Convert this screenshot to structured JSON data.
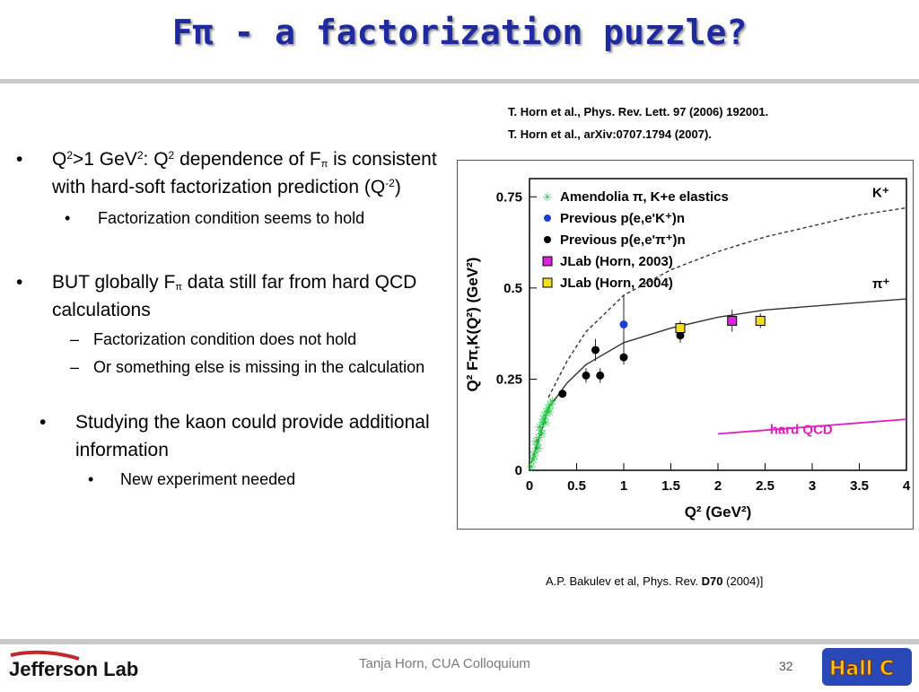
{
  "slide": {
    "title": "Fπ - a factorization puzzle?",
    "refs": [
      "T. Horn et al.,  Phys. Rev. Lett. 97 (2006) 192001.",
      "T. Horn et al.,  arXiv:0707.1794 (2007)."
    ],
    "bullet1": {
      "text_a": "Q",
      "text_b": "2",
      "text_c": ">1 GeV",
      "text_d": "2",
      "text_e": ": Q",
      "text_f": "2",
      "text_g": " dependence of F",
      "text_h": "π",
      "text_i": " is consistent with hard-soft factorization prediction (Q",
      "text_j": "-2",
      "text_k": ")",
      "sub": "Factorization condition seems to hold"
    },
    "bullet2": {
      "text_a": "BUT globally F",
      "text_b": "π",
      "text_c": " data still far from hard QCD calculations",
      "subs": [
        "Factorization condition does not hold",
        "Or something else is missing in the calculation"
      ]
    },
    "bullet3": {
      "text": "Studying the kaon could provide additional information",
      "sub": "New experiment needed"
    },
    "bakulev_a": "A.P. Bakulev et al, Phys. Rev. ",
    "bakulev_b": "D70",
    "bakulev_c": " (2004)]",
    "footer_center": "Tanja Horn, CUA Colloquium",
    "page_number": "32",
    "logo_left": "Jefferson Lab",
    "logo_right": "Hall C"
  },
  "chart_data": {
    "type": "scatter",
    "xlabel": "Q² (GeV²)",
    "ylabel": "Q² Fπ,K(Q²) (GeV²)",
    "xlim": [
      0,
      4
    ],
    "ylim": [
      0,
      0.8
    ],
    "xticks": [
      "0",
      "0.5",
      "1",
      "1.5",
      "2",
      "2.5",
      "3",
      "3.5",
      "4"
    ],
    "yticks": [
      "0",
      "0.25",
      "0.5",
      "0.75"
    ],
    "legend_position": "top-left",
    "series": [
      {
        "name": "Amendolia π, K+e elastics",
        "color": "#22cc44",
        "marker": "star",
        "points": [
          [
            0.02,
            0.01
          ],
          [
            0.04,
            0.03
          ],
          [
            0.06,
            0.05
          ],
          [
            0.08,
            0.07
          ],
          [
            0.1,
            0.09
          ],
          [
            0.12,
            0.11
          ],
          [
            0.14,
            0.13
          ],
          [
            0.16,
            0.15
          ],
          [
            0.18,
            0.16
          ],
          [
            0.2,
            0.17
          ],
          [
            0.22,
            0.18
          ],
          [
            0.24,
            0.19
          ],
          [
            0.05,
            0.04
          ],
          [
            0.09,
            0.06
          ],
          [
            0.13,
            0.1
          ],
          [
            0.17,
            0.13
          ],
          [
            0.21,
            0.16
          ],
          [
            0.07,
            0.08
          ],
          [
            0.11,
            0.12
          ],
          [
            0.15,
            0.14
          ]
        ]
      },
      {
        "name": "Previous p(e,e'K⁺)n",
        "color": "#1a3fd1",
        "marker": "circle",
        "points": [
          [
            1.0,
            0.4
          ]
        ]
      },
      {
        "name": "Previous p(e,e'π⁺)n",
        "color": "#000000",
        "marker": "circle",
        "points": [
          [
            0.35,
            0.21
          ],
          [
            0.6,
            0.26
          ],
          [
            0.7,
            0.33
          ],
          [
            0.75,
            0.26
          ],
          [
            1.0,
            0.31
          ],
          [
            1.6,
            0.37
          ]
        ]
      },
      {
        "name": "JLab (Horn, 2003)",
        "color": "#e020e0",
        "marker": "square",
        "points": [
          [
            2.15,
            0.41
          ]
        ]
      },
      {
        "name": "JLab (Horn, 2004)",
        "color": "#f0e020",
        "marker": "square",
        "points": [
          [
            1.6,
            0.39
          ],
          [
            2.45,
            0.41
          ]
        ]
      }
    ],
    "curves": [
      {
        "name": "K⁺",
        "style": "dashed",
        "points": [
          [
            0.2,
            0.2
          ],
          [
            0.4,
            0.3
          ],
          [
            0.6,
            0.38
          ],
          [
            1.0,
            0.48
          ],
          [
            1.5,
            0.55
          ],
          [
            2.0,
            0.6
          ],
          [
            2.5,
            0.64
          ],
          [
            3.0,
            0.67
          ],
          [
            3.5,
            0.7
          ],
          [
            4.0,
            0.72
          ]
        ]
      },
      {
        "name": "π⁺",
        "style": "solid",
        "points": [
          [
            0.02,
            0.02
          ],
          [
            0.2,
            0.17
          ],
          [
            0.4,
            0.24
          ],
          [
            0.6,
            0.29
          ],
          [
            1.0,
            0.35
          ],
          [
            1.5,
            0.39
          ],
          [
            2.0,
            0.42
          ],
          [
            2.5,
            0.44
          ],
          [
            3.0,
            0.45
          ],
          [
            3.5,
            0.46
          ],
          [
            4.0,
            0.47
          ]
        ]
      },
      {
        "name": "hard QCD",
        "style": "solid",
        "color": "#e020c0",
        "points": [
          [
            2.0,
            0.1
          ],
          [
            2.5,
            0.11
          ],
          [
            3.0,
            0.12
          ],
          [
            3.5,
            0.13
          ],
          [
            4.0,
            0.14
          ]
        ]
      }
    ],
    "error_bars": [
      [
        1.0,
        0.4,
        0.08
      ],
      [
        0.7,
        0.33,
        0.03
      ],
      [
        0.6,
        0.26,
        0.02
      ],
      [
        0.75,
        0.26,
        0.02
      ],
      [
        1.0,
        0.31,
        0.02
      ],
      [
        1.6,
        0.37,
        0.02
      ],
      [
        1.6,
        0.39,
        0.02
      ],
      [
        2.15,
        0.41,
        0.03
      ],
      [
        2.45,
        0.41,
        0.02
      ]
    ]
  }
}
